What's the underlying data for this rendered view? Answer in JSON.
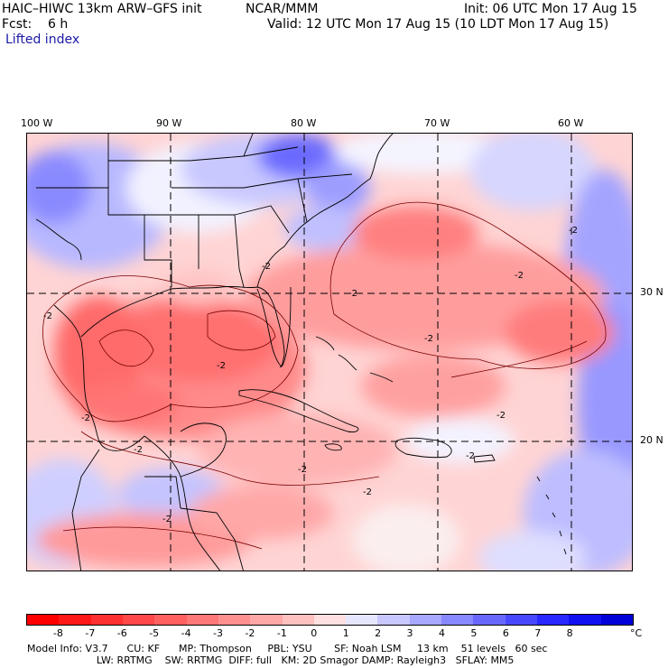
{
  "header": {
    "model": "HAIC–HIWC 13km ARW–GFS init",
    "org": "NCAR/MMM",
    "init": "Init: 06 UTC Mon 17 Aug 15",
    "fcst": "Fcst:    6 h",
    "valid": "Valid: 12 UTC Mon 17 Aug 15 (10 LDT Mon 17 Aug 15)",
    "field": "Lifted index"
  },
  "map": {
    "lon_labels": [
      "100 W",
      "90 W",
      "80 W",
      "70 W",
      "60 W"
    ],
    "lat_labels": [
      "30 N",
      "20 N"
    ],
    "contour_labels": [
      "-2",
      "-2",
      "-2",
      "-2",
      "-2",
      "-2",
      "-2",
      "-2",
      "-2",
      "-2",
      "-2",
      "-2",
      "-2",
      "-2"
    ]
  },
  "colorbar": {
    "labels": [
      "-8",
      "-7",
      "-6",
      "-5",
      "-4",
      "-3",
      "-2",
      "-1",
      "0",
      "1",
      "2",
      "3",
      "4",
      "5",
      "6",
      "7",
      "8"
    ],
    "unit": "°C",
    "colors": [
      "#ff0000",
      "#ff1818",
      "#ff3030",
      "#ff4848",
      "#ff6060",
      "#ff7878",
      "#ff9090",
      "#ffa8a8",
      "#ffc0c0",
      "#ffe0e0",
      "#e6e6ff",
      "#c8c8ff",
      "#a8a8ff",
      "#8888ff",
      "#6868ff",
      "#4848ff",
      "#2828ff",
      "#1010f0",
      "#0000d8"
    ]
  },
  "model_info": {
    "line1": "Model Info: V3.7      CU: KF      MP: Thompson     PBL: YSU       SF: Noah LSM     13 km    51 levels   60 sec",
    "line2": "                      LW: RRTMG    SW: RRTMG  DIFF: full   KM: 2D Smagor DAMP: Rayleigh3   SFLAY: MM5"
  }
}
